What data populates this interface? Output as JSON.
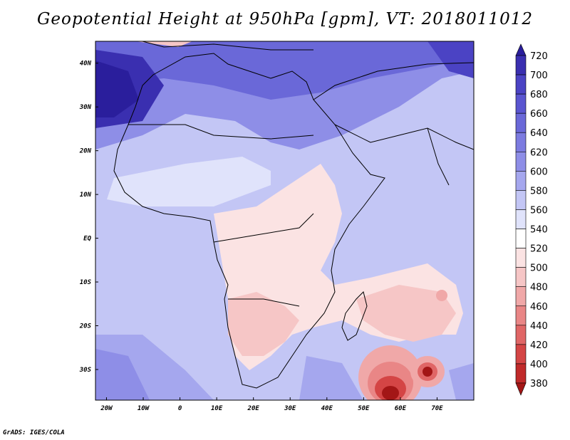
{
  "title": "Geopotential Height at 950hPa [gpm], VT: 2018011012",
  "credit": "GrADS: IGES/COLA",
  "map": {
    "lon_min": -23,
    "lon_max": 80,
    "lat_min": -37,
    "lat_max": 45,
    "x_ticks": [
      {
        "value": -20,
        "label": "20W"
      },
      {
        "value": -10,
        "label": "10W"
      },
      {
        "value": 0,
        "label": "0"
      },
      {
        "value": 10,
        "label": "10E"
      },
      {
        "value": 20,
        "label": "20E"
      },
      {
        "value": 30,
        "label": "30E"
      },
      {
        "value": 40,
        "label": "40E"
      },
      {
        "value": 50,
        "label": "50E"
      },
      {
        "value": 60,
        "label": "60E"
      },
      {
        "value": 70,
        "label": "70E"
      }
    ],
    "y_ticks": [
      {
        "value": 40,
        "label": "40N"
      },
      {
        "value": 30,
        "label": "30N"
      },
      {
        "value": 20,
        "label": "20N"
      },
      {
        "value": 10,
        "label": "10N"
      },
      {
        "value": 0,
        "label": "EQ"
      },
      {
        "value": -10,
        "label": "10S"
      },
      {
        "value": -20,
        "label": "20S"
      },
      {
        "value": -30,
        "label": "30S"
      }
    ]
  },
  "colorbar": {
    "levels": [
      "720",
      "700",
      "680",
      "660",
      "640",
      "620",
      "600",
      "580",
      "560",
      "540",
      "520",
      "500",
      "480",
      "460",
      "440",
      "420",
      "400",
      "380"
    ],
    "colors": [
      "#2a1e9c",
      "#3a2fb0",
      "#4b43c4",
      "#5a55d0",
      "#6a68d8",
      "#7c7be0",
      "#8e8ee7",
      "#a5a7ee",
      "#c3c6f5",
      "#e0e3fb",
      "#ffffff",
      "#fbe3e3",
      "#f6c6c6",
      "#f0a8a8",
      "#e98686",
      "#e06666",
      "#d44545",
      "#c02a2a",
      "#a31616"
    ]
  }
}
